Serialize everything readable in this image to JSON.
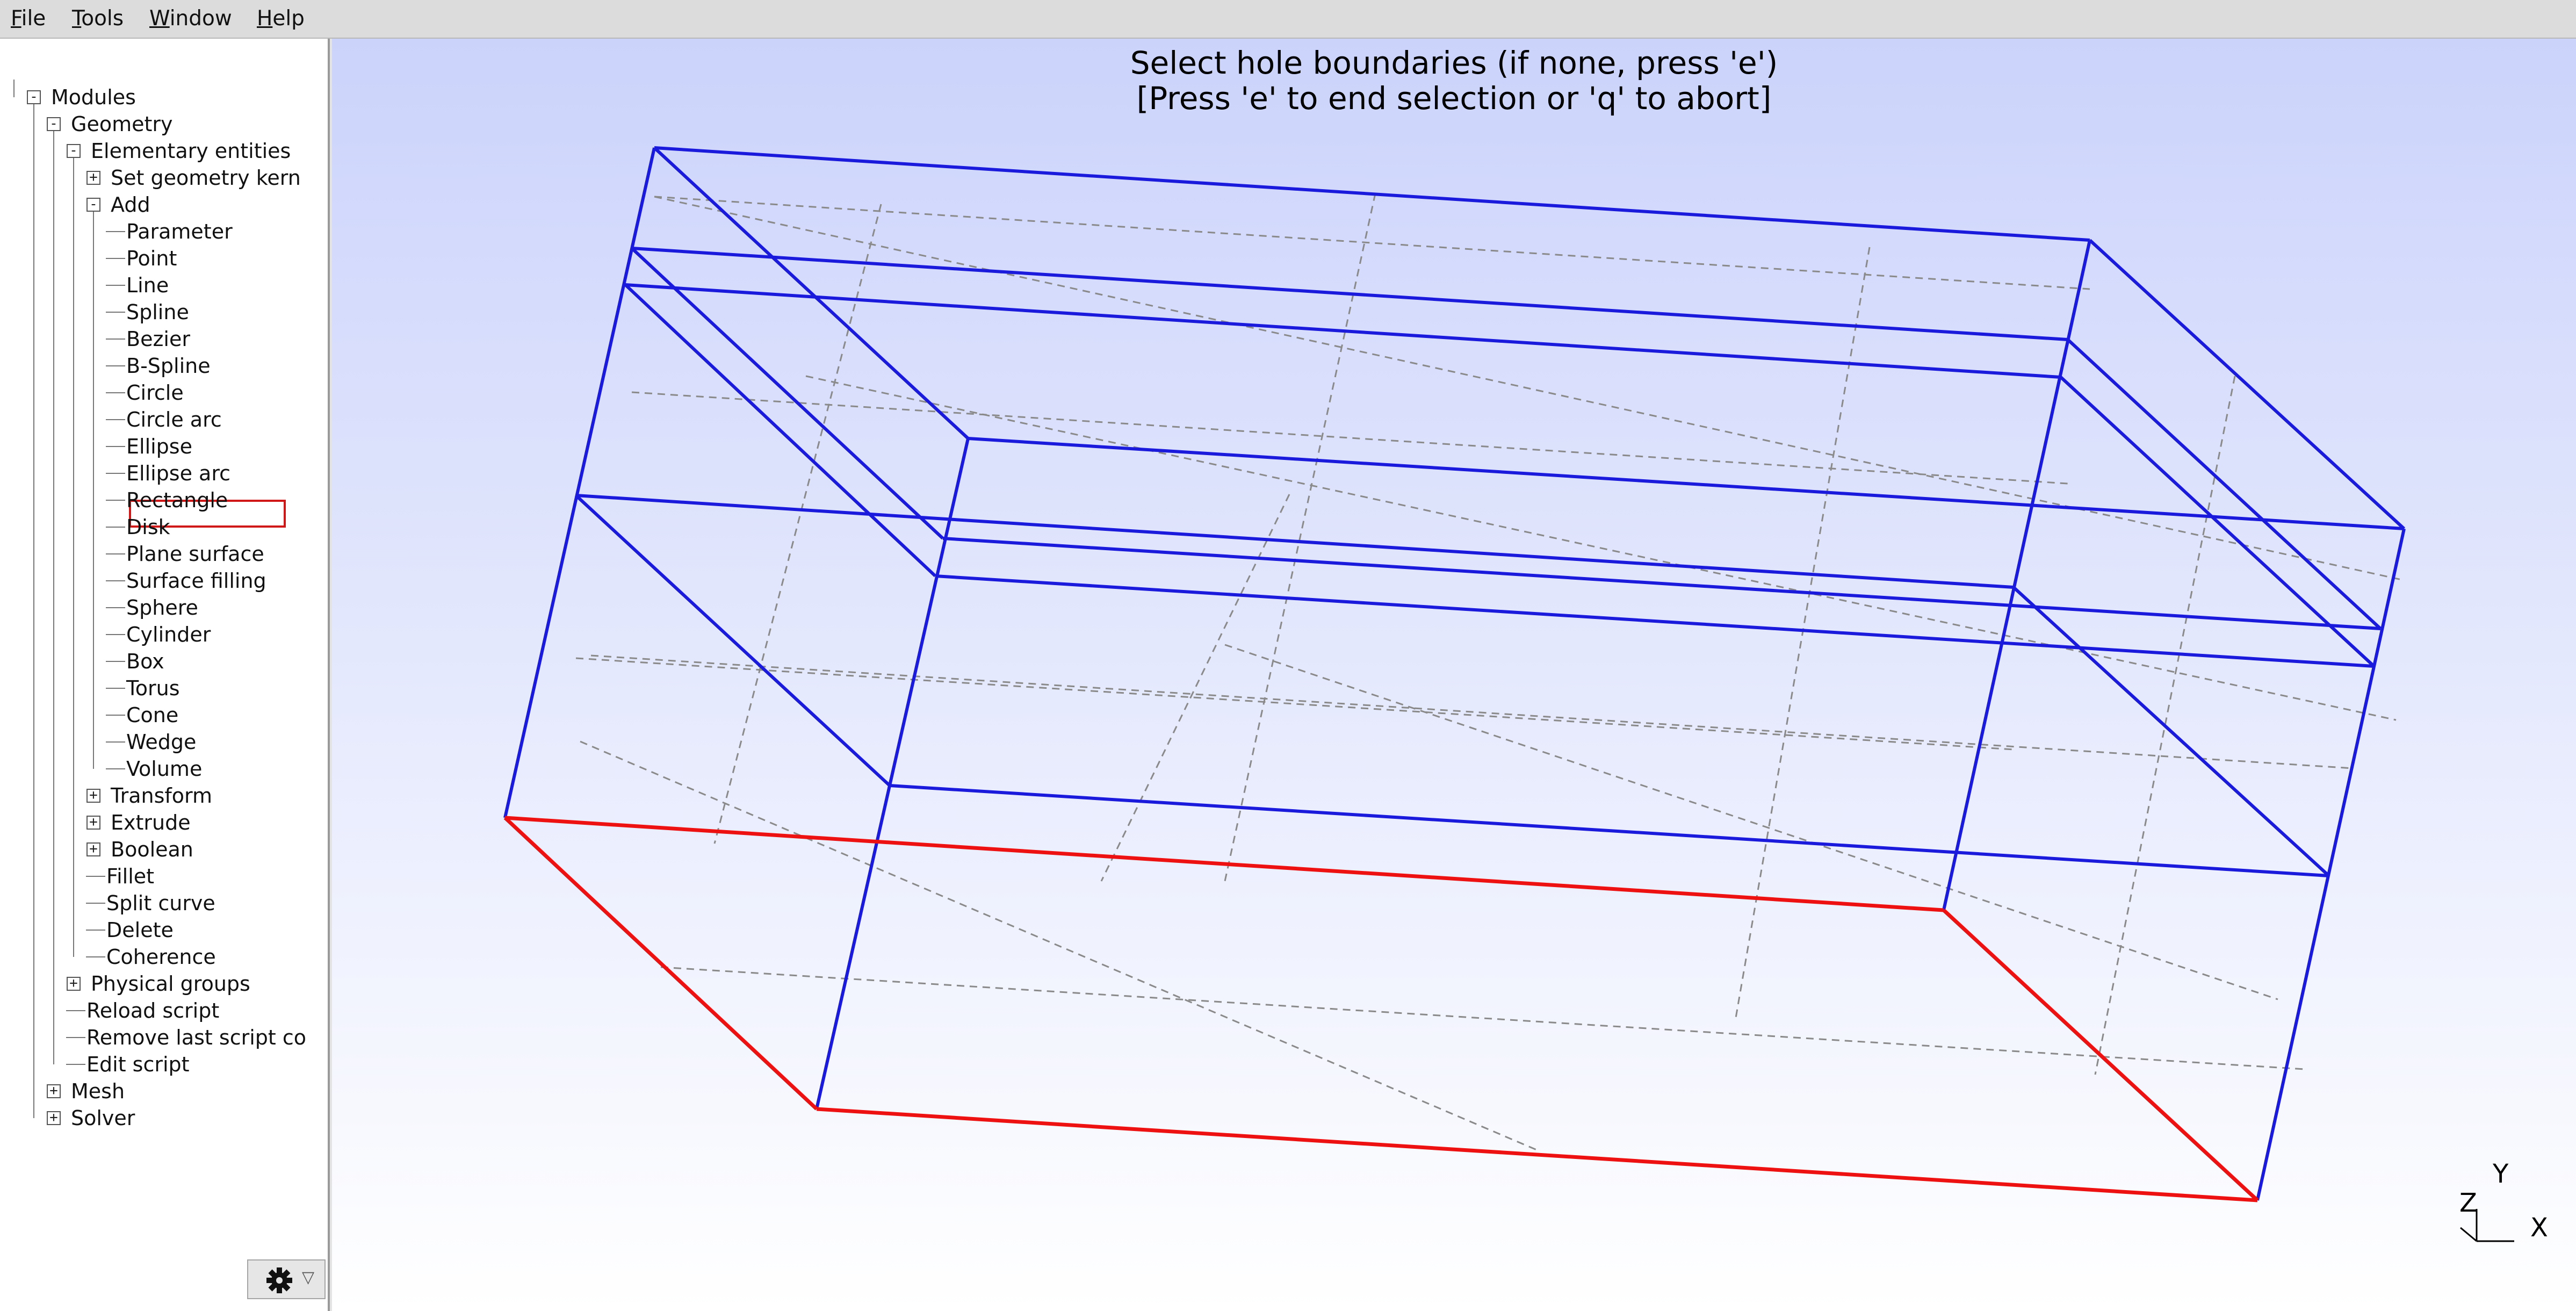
{
  "menubar": {
    "items": [
      "File",
      "Tools",
      "Window",
      "Help"
    ]
  },
  "tree": {
    "modules": "Modules",
    "geometry": "Geometry",
    "elementary_entities": "Elementary entities",
    "set_geometry_kernel": "Set geometry kern",
    "add": "Add",
    "add_items": [
      "Parameter",
      "Point",
      "Line",
      "Spline",
      "Bezier",
      "B-Spline",
      "Circle",
      "Circle arc",
      "Ellipse",
      "Ellipse arc",
      "Rectangle",
      "Disk",
      "Plane surface",
      "Surface filling",
      "Sphere",
      "Cylinder",
      "Box",
      "Torus",
      "Cone",
      "Wedge",
      "Volume"
    ],
    "transform": "Transform",
    "extrude": "Extrude",
    "boolean": "Boolean",
    "fillet": "Fillet",
    "split_curve": "Split curve",
    "delete": "Delete",
    "coherence": "Coherence",
    "physical_groups": "Physical groups",
    "reload_script": "Reload script",
    "remove_last_script": "Remove last script co",
    "edit_script": "Edit script",
    "mesh": "Mesh",
    "solver": "Solver",
    "selected_item": "Plane surface"
  },
  "viewport": {
    "status_line1": "Select hole boundaries (if none, press 'e')",
    "status_line2": "[Press 'e' to end selection or 'q' to abort]",
    "axes": {
      "y": "Y",
      "z": "Z",
      "x": "X"
    },
    "colors": {
      "wire": "#1a1adc",
      "selected": "#ee1111",
      "hidden": "#8a8a8a"
    }
  },
  "options_button": {
    "icon": "gear-icon",
    "arrow": "▽"
  }
}
